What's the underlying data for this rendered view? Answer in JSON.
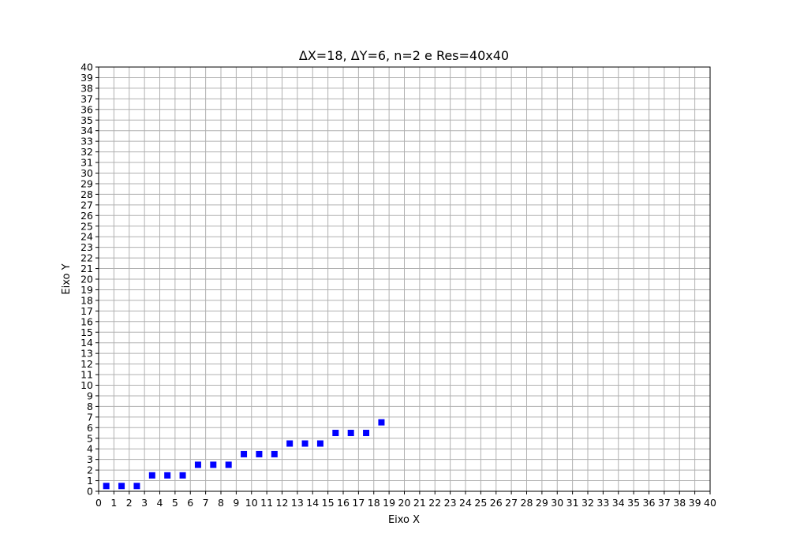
{
  "chart_data": {
    "type": "scatter",
    "title": "ΔX=18, ΔY=6, n=2 e Res=40x40",
    "xlabel": "Eixo X",
    "ylabel": "Eixo Y",
    "xlim": [
      0,
      40
    ],
    "ylim": [
      0,
      40
    ],
    "xticks": [
      0,
      1,
      2,
      3,
      4,
      5,
      6,
      7,
      8,
      9,
      10,
      11,
      12,
      13,
      14,
      15,
      16,
      17,
      18,
      19,
      20,
      21,
      22,
      23,
      24,
      25,
      26,
      27,
      28,
      29,
      30,
      31,
      32,
      33,
      34,
      35,
      36,
      37,
      38,
      39,
      40
    ],
    "yticks": [
      0,
      1,
      2,
      3,
      4,
      5,
      6,
      7,
      8,
      9,
      10,
      11,
      12,
      13,
      14,
      15,
      16,
      17,
      18,
      19,
      20,
      21,
      22,
      23,
      24,
      25,
      26,
      27,
      28,
      29,
      30,
      31,
      32,
      33,
      34,
      35,
      36,
      37,
      38,
      39,
      40
    ],
    "grid": true,
    "marker": "square",
    "color": "#0000ff",
    "grid_color": "#b0b0b0",
    "points": [
      {
        "x": 0.5,
        "y": 0.5
      },
      {
        "x": 1.5,
        "y": 0.5
      },
      {
        "x": 2.5,
        "y": 0.5
      },
      {
        "x": 3.5,
        "y": 1.5
      },
      {
        "x": 4.5,
        "y": 1.5
      },
      {
        "x": 5.5,
        "y": 1.5
      },
      {
        "x": 6.5,
        "y": 2.5
      },
      {
        "x": 7.5,
        "y": 2.5
      },
      {
        "x": 8.5,
        "y": 2.5
      },
      {
        "x": 9.5,
        "y": 3.5
      },
      {
        "x": 10.5,
        "y": 3.5
      },
      {
        "x": 11.5,
        "y": 3.5
      },
      {
        "x": 12.5,
        "y": 4.5
      },
      {
        "x": 13.5,
        "y": 4.5
      },
      {
        "x": 14.5,
        "y": 4.5
      },
      {
        "x": 15.5,
        "y": 5.5
      },
      {
        "x": 16.5,
        "y": 5.5
      },
      {
        "x": 17.5,
        "y": 5.5
      },
      {
        "x": 18.5,
        "y": 6.5
      }
    ]
  }
}
